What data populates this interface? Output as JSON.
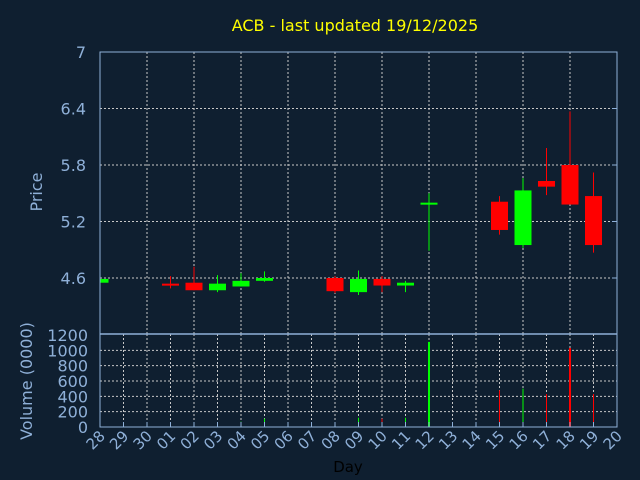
{
  "chart_data": {
    "type": "candlestick",
    "title": "ACB - last updated 19/12/2025",
    "xlabel": "Day",
    "ylabel": "Price",
    "volume_label": "Volume (0000)",
    "x_tick_labels": [
      "28",
      "29",
      "30",
      "01",
      "02",
      "03",
      "04",
      "05",
      "06",
      "07",
      "08",
      "09",
      "10",
      "11",
      "12",
      "13",
      "14",
      "15",
      "16",
      "17",
      "18",
      "19",
      "20"
    ],
    "price_ticks": [
      4.6,
      5.2,
      5.8,
      6.4,
      7
    ],
    "price_ylim": [
      4.3,
      7
    ],
    "volume_ticks": [
      0,
      200,
      400,
      600,
      800,
      1000,
      1200
    ],
    "volume_ylim": [
      0,
      1200
    ],
    "grid": true,
    "colors": {
      "up": "#00ff00",
      "down": "#ff0000",
      "background": "#0f1f30",
      "axis": "#8fb0d8",
      "grid": "#c8c8c8",
      "title": "#ffff00"
    },
    "candles": [
      {
        "day": "28",
        "open": 4.55,
        "high": 4.6,
        "low": 4.55,
        "close": 4.59,
        "volume": 10
      },
      {
        "day": "01",
        "open": 4.54,
        "high": 4.62,
        "low": 4.49,
        "close": 4.53,
        "volume": 60
      },
      {
        "day": "02",
        "open": 4.55,
        "high": 4.72,
        "low": 4.47,
        "close": 4.47,
        "volume": 50
      },
      {
        "day": "03",
        "open": 4.47,
        "high": 4.63,
        "low": 4.45,
        "close": 4.54,
        "volume": 50
      },
      {
        "day": "04",
        "open": 4.51,
        "high": 4.65,
        "low": 4.51,
        "close": 4.57,
        "volume": 70
      },
      {
        "day": "05",
        "open": 4.57,
        "high": 4.67,
        "low": 4.56,
        "close": 4.6,
        "volume": 110
      },
      {
        "day": "08",
        "open": 4.6,
        "high": 4.62,
        "low": 4.44,
        "close": 4.46,
        "volume": 55
      },
      {
        "day": "09",
        "open": 4.45,
        "high": 4.68,
        "low": 4.42,
        "close": 4.59,
        "volume": 120
      },
      {
        "day": "10",
        "open": 4.59,
        "high": 4.62,
        "low": 4.45,
        "close": 4.52,
        "volume": 110
      },
      {
        "day": "11",
        "open": 4.52,
        "high": 4.57,
        "low": 4.45,
        "close": 4.55,
        "volume": 120
      },
      {
        "day": "12",
        "open": 5.39,
        "high": 5.5,
        "low": 4.89,
        "close": 5.4,
        "volume": 1110
      },
      {
        "day": "15",
        "open": 5.41,
        "high": 5.47,
        "low": 5.06,
        "close": 5.11,
        "volume": 480
      },
      {
        "day": "16",
        "open": 4.95,
        "high": 5.66,
        "low": 4.92,
        "close": 5.53,
        "volume": 500
      },
      {
        "day": "17",
        "open": 5.63,
        "high": 5.98,
        "low": 5.48,
        "close": 5.57,
        "volume": 430
      },
      {
        "day": "18",
        "open": 5.8,
        "high": 6.37,
        "low": 5.38,
        "close": 5.38,
        "volume": 1030
      },
      {
        "day": "19",
        "open": 5.47,
        "high": 5.72,
        "low": 4.87,
        "close": 4.95,
        "volume": 430
      }
    ]
  }
}
